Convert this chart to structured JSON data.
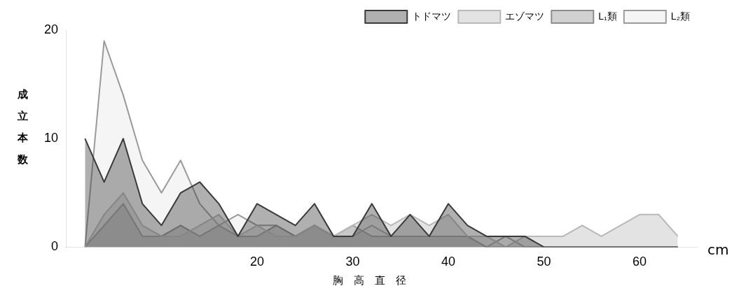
{
  "chart_data": {
    "type": "area",
    "xlabel": "胸　高　直　径",
    "ylabel": "成立本数",
    "annotations": [
      "cm"
    ],
    "x": [
      2,
      4,
      6,
      8,
      10,
      12,
      14,
      16,
      18,
      20,
      22,
      24,
      26,
      28,
      30,
      32,
      34,
      36,
      38,
      40,
      42,
      44,
      46,
      48,
      50,
      52,
      54,
      56,
      58,
      60,
      62,
      64
    ],
    "series": [
      {
        "name": "トドマツ",
        "color": "#3a3a3a",
        "values": [
          10,
          6,
          10,
          4,
          2,
          5,
          6,
          4,
          1,
          4,
          3,
          2,
          4,
          1,
          1,
          4,
          1,
          3,
          1,
          4,
          2,
          1,
          1,
          1,
          0,
          0,
          0,
          0,
          0,
          0,
          0,
          0
        ]
      },
      {
        "name": "エゾマツ",
        "color": "#b8b8b8",
        "values": [
          0,
          3,
          5,
          2,
          1,
          1,
          2,
          3,
          1,
          2,
          1,
          1,
          2,
          1,
          2,
          3,
          2,
          3,
          2,
          3,
          1,
          1,
          0,
          1,
          1,
          1,
          2,
          1,
          2,
          3,
          3,
          1
        ]
      },
      {
        "name": "L₁類",
        "color": "#8c8c8c",
        "values": [
          0,
          2,
          4,
          1,
          1,
          2,
          1,
          2,
          1,
          1,
          2,
          1,
          2,
          1,
          2,
          1,
          1,
          1,
          1,
          1,
          1,
          0,
          0,
          0,
          0,
          0,
          0,
          0,
          0,
          0,
          0,
          0
        ]
      },
      {
        "name": "L₂類",
        "color": "#e6e6e6",
        "values": [
          0,
          19,
          14,
          8,
          5,
          8,
          4,
          2,
          3,
          2,
          2,
          1,
          2,
          1,
          1,
          2,
          1,
          1,
          1,
          1,
          1,
          0,
          1,
          0,
          0,
          0,
          0,
          0,
          0,
          0,
          0,
          0
        ]
      }
    ],
    "xlim": [
      0,
      66
    ],
    "ylim": [
      0,
      20
    ],
    "xticks": [
      20,
      30,
      40,
      50,
      60
    ],
    "yticks": [
      0,
      10,
      20
    ],
    "legend": "top right",
    "grid": false
  }
}
